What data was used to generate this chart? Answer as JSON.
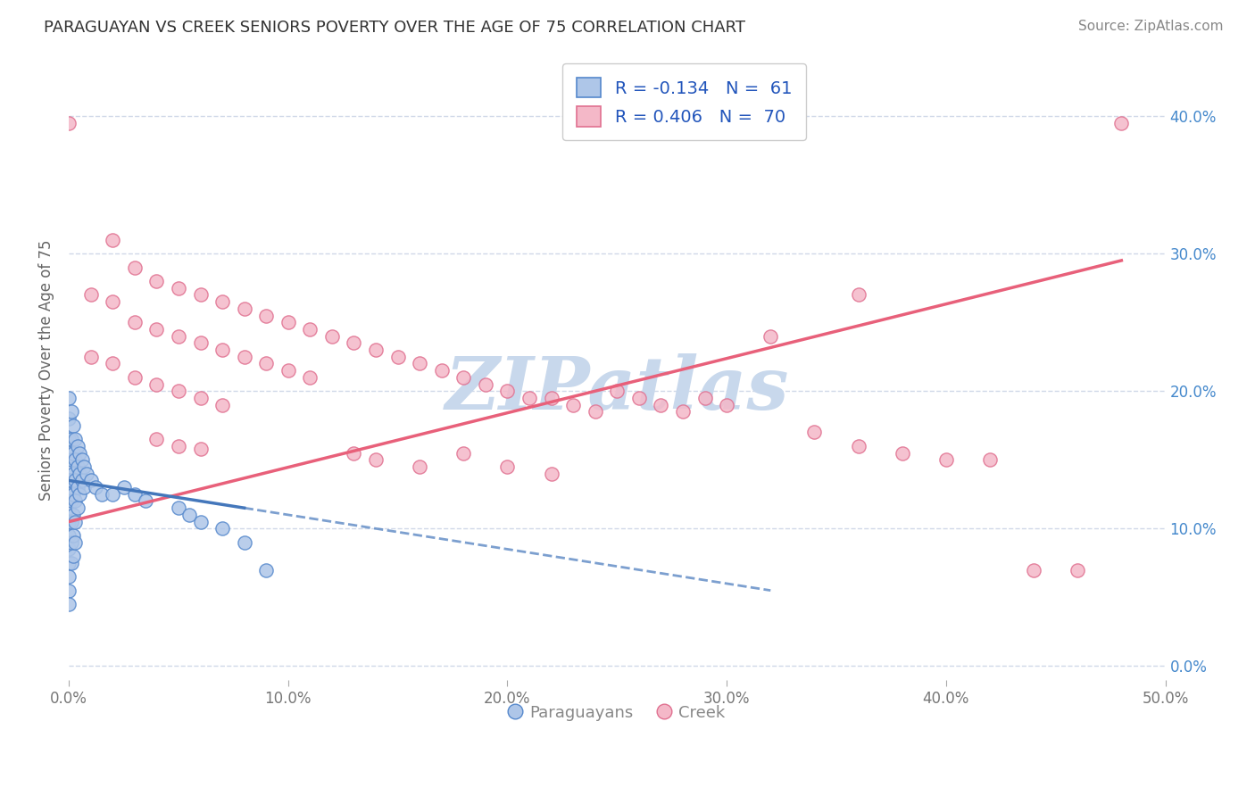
{
  "title": "PARAGUAYAN VS CREEK SENIORS POVERTY OVER THE AGE OF 75 CORRELATION CHART",
  "source_text": "Source: ZipAtlas.com",
  "ylabel": "Seniors Poverty Over the Age of 75",
  "xlim": [
    0.0,
    0.5
  ],
  "ylim": [
    -0.01,
    0.44
  ],
  "ytick_positions": [
    0.0,
    0.1,
    0.2,
    0.3,
    0.4
  ],
  "yticklabels_right": [
    "0.0%",
    "10.0%",
    "20.0%",
    "30.0%",
    "40.0%"
  ],
  "xtick_vals": [
    0.0,
    0.1,
    0.2,
    0.3,
    0.4,
    0.5
  ],
  "xticklabels": [
    "0.0%",
    "10.0%",
    "20.0%",
    "30.0%",
    "40.0%",
    "50.0%"
  ],
  "R_paraguayan": -0.134,
  "N_paraguayan": 61,
  "R_creek": 0.406,
  "N_creek": 70,
  "paraguayan_color": "#aec6e8",
  "creek_color": "#f4b8c8",
  "paraguayan_edge_color": "#5588cc",
  "creek_edge_color": "#e07090",
  "paraguayan_line_color": "#4477bb",
  "creek_line_color": "#e8607a",
  "creek_line_solid_color": "#e8607a",
  "watermark_color": "#c8d8ec",
  "legend_r_color": "#2255bb",
  "background_color": "#ffffff",
  "grid_color": "#d0d8e8",
  "paraguayan_scatter": [
    [
      0.0,
      0.195
    ],
    [
      0.0,
      0.18
    ],
    [
      0.0,
      0.165
    ],
    [
      0.0,
      0.155
    ],
    [
      0.0,
      0.145
    ],
    [
      0.0,
      0.135
    ],
    [
      0.0,
      0.125
    ],
    [
      0.0,
      0.115
    ],
    [
      0.0,
      0.105
    ],
    [
      0.0,
      0.095
    ],
    [
      0.0,
      0.085
    ],
    [
      0.0,
      0.075
    ],
    [
      0.0,
      0.065
    ],
    [
      0.0,
      0.055
    ],
    [
      0.0,
      0.045
    ],
    [
      0.001,
      0.185
    ],
    [
      0.001,
      0.165
    ],
    [
      0.001,
      0.15
    ],
    [
      0.001,
      0.135
    ],
    [
      0.001,
      0.12
    ],
    [
      0.001,
      0.105
    ],
    [
      0.001,
      0.09
    ],
    [
      0.001,
      0.075
    ],
    [
      0.002,
      0.175
    ],
    [
      0.002,
      0.155
    ],
    [
      0.002,
      0.14
    ],
    [
      0.002,
      0.125
    ],
    [
      0.002,
      0.11
    ],
    [
      0.002,
      0.095
    ],
    [
      0.002,
      0.08
    ],
    [
      0.003,
      0.165
    ],
    [
      0.003,
      0.15
    ],
    [
      0.003,
      0.135
    ],
    [
      0.003,
      0.12
    ],
    [
      0.003,
      0.105
    ],
    [
      0.003,
      0.09
    ],
    [
      0.004,
      0.16
    ],
    [
      0.004,
      0.145
    ],
    [
      0.004,
      0.13
    ],
    [
      0.004,
      0.115
    ],
    [
      0.005,
      0.155
    ],
    [
      0.005,
      0.14
    ],
    [
      0.005,
      0.125
    ],
    [
      0.006,
      0.15
    ],
    [
      0.006,
      0.135
    ],
    [
      0.007,
      0.145
    ],
    [
      0.007,
      0.13
    ],
    [
      0.008,
      0.14
    ],
    [
      0.01,
      0.135
    ],
    [
      0.012,
      0.13
    ],
    [
      0.015,
      0.125
    ],
    [
      0.02,
      0.125
    ],
    [
      0.025,
      0.13
    ],
    [
      0.03,
      0.125
    ],
    [
      0.035,
      0.12
    ],
    [
      0.05,
      0.115
    ],
    [
      0.055,
      0.11
    ],
    [
      0.06,
      0.105
    ],
    [
      0.07,
      0.1
    ],
    [
      0.08,
      0.09
    ],
    [
      0.09,
      0.07
    ]
  ],
  "creek_scatter": [
    [
      0.0,
      0.395
    ],
    [
      0.01,
      0.27
    ],
    [
      0.01,
      0.225
    ],
    [
      0.02,
      0.31
    ],
    [
      0.02,
      0.265
    ],
    [
      0.02,
      0.22
    ],
    [
      0.03,
      0.29
    ],
    [
      0.03,
      0.25
    ],
    [
      0.03,
      0.21
    ],
    [
      0.04,
      0.28
    ],
    [
      0.04,
      0.245
    ],
    [
      0.04,
      0.205
    ],
    [
      0.04,
      0.165
    ],
    [
      0.05,
      0.275
    ],
    [
      0.05,
      0.24
    ],
    [
      0.05,
      0.2
    ],
    [
      0.05,
      0.16
    ],
    [
      0.06,
      0.27
    ],
    [
      0.06,
      0.235
    ],
    [
      0.06,
      0.195
    ],
    [
      0.06,
      0.158
    ],
    [
      0.07,
      0.265
    ],
    [
      0.07,
      0.23
    ],
    [
      0.07,
      0.19
    ],
    [
      0.08,
      0.26
    ],
    [
      0.08,
      0.225
    ],
    [
      0.09,
      0.255
    ],
    [
      0.09,
      0.22
    ],
    [
      0.1,
      0.25
    ],
    [
      0.1,
      0.215
    ],
    [
      0.11,
      0.245
    ],
    [
      0.11,
      0.21
    ],
    [
      0.12,
      0.24
    ],
    [
      0.13,
      0.235
    ],
    [
      0.13,
      0.155
    ],
    [
      0.14,
      0.23
    ],
    [
      0.14,
      0.15
    ],
    [
      0.15,
      0.225
    ],
    [
      0.16,
      0.22
    ],
    [
      0.16,
      0.145
    ],
    [
      0.17,
      0.215
    ],
    [
      0.18,
      0.21
    ],
    [
      0.18,
      0.155
    ],
    [
      0.19,
      0.205
    ],
    [
      0.2,
      0.2
    ],
    [
      0.2,
      0.145
    ],
    [
      0.21,
      0.195
    ],
    [
      0.22,
      0.195
    ],
    [
      0.22,
      0.14
    ],
    [
      0.23,
      0.19
    ],
    [
      0.24,
      0.185
    ],
    [
      0.25,
      0.2
    ],
    [
      0.26,
      0.195
    ],
    [
      0.27,
      0.19
    ],
    [
      0.28,
      0.185
    ],
    [
      0.29,
      0.195
    ],
    [
      0.3,
      0.19
    ],
    [
      0.32,
      0.24
    ],
    [
      0.34,
      0.17
    ],
    [
      0.36,
      0.16
    ],
    [
      0.38,
      0.155
    ],
    [
      0.4,
      0.15
    ],
    [
      0.42,
      0.15
    ],
    [
      0.44,
      0.07
    ],
    [
      0.46,
      0.07
    ],
    [
      0.36,
      0.27
    ],
    [
      0.48,
      0.395
    ]
  ],
  "par_line_x": [
    0.0,
    0.2
  ],
  "par_line_y_start": 0.135,
  "par_line_y_end": 0.085,
  "creek_line_x": [
    0.0,
    0.48
  ],
  "creek_line_y_start": 0.105,
  "creek_line_y_end": 0.295
}
